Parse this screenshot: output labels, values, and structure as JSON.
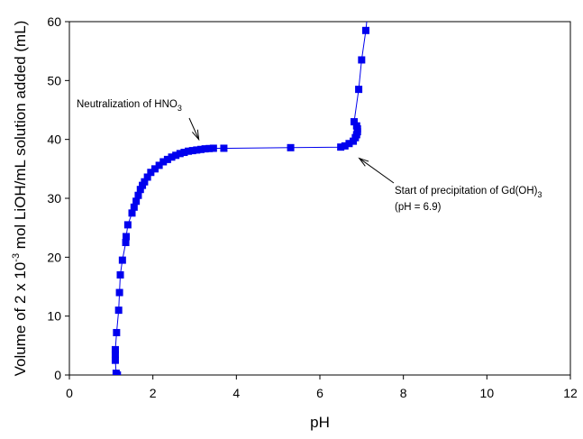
{
  "chart_data": {
    "type": "scatter",
    "title": "",
    "xlabel": "pH",
    "ylabel": {
      "prefix": "Volume of 2 x 10",
      "sup": "-3",
      "suffix": " mol LiOH/mL solution added (mL)"
    },
    "xlim": [
      0,
      12
    ],
    "ylim": [
      0,
      60
    ],
    "xticks": [
      "0",
      "2",
      "4",
      "6",
      "8",
      "10",
      "12"
    ],
    "yticks": [
      "0",
      "10",
      "20",
      "30",
      "40",
      "50",
      "60"
    ],
    "grid": false,
    "legend": "none",
    "marker": "square",
    "line": true,
    "series_color": "#0000ee",
    "series": [
      {
        "points": [
          [
            1.15,
            0
          ],
          [
            1.12,
            0.3
          ],
          [
            1.1,
            2.5
          ],
          [
            1.1,
            3.5
          ],
          [
            1.1,
            4.3
          ],
          [
            1.13,
            7.2
          ],
          [
            1.18,
            11
          ],
          [
            1.2,
            14
          ],
          [
            1.22,
            17
          ],
          [
            1.27,
            19.5
          ],
          [
            1.35,
            22.5
          ],
          [
            1.36,
            23.5
          ],
          [
            1.4,
            25.5
          ],
          [
            1.5,
            27.5
          ],
          [
            1.55,
            28.5
          ],
          [
            1.6,
            29.5
          ],
          [
            1.65,
            30.5
          ],
          [
            1.7,
            31.5
          ],
          [
            1.75,
            32.2
          ],
          [
            1.8,
            32.8
          ],
          [
            1.87,
            33.6
          ],
          [
            1.95,
            34.4
          ],
          [
            2.05,
            35
          ],
          [
            2.15,
            35.6
          ],
          [
            2.25,
            36.2
          ],
          [
            2.35,
            36.6
          ],
          [
            2.45,
            37
          ],
          [
            2.55,
            37.3
          ],
          [
            2.65,
            37.6
          ],
          [
            2.75,
            37.8
          ],
          [
            2.85,
            38
          ],
          [
            2.95,
            38.1
          ],
          [
            3.05,
            38.2
          ],
          [
            3.15,
            38.3
          ],
          [
            3.25,
            38.4
          ],
          [
            3.35,
            38.45
          ],
          [
            3.45,
            38.5
          ],
          [
            3.7,
            38.5
          ],
          [
            5.3,
            38.6
          ],
          [
            6.5,
            38.7
          ],
          [
            6.6,
            38.9
          ],
          [
            6.7,
            39.3
          ],
          [
            6.8,
            39.7
          ],
          [
            6.85,
            40.3
          ],
          [
            6.88,
            40.8
          ],
          [
            6.9,
            41.3
          ],
          [
            6.9,
            41.8
          ],
          [
            6.88,
            42.3
          ],
          [
            6.82,
            43
          ],
          [
            6.93,
            48.5
          ],
          [
            7.0,
            53.5
          ],
          [
            7.1,
            58.5
          ],
          [
            7.15,
            62
          ]
        ]
      }
    ],
    "annotations": [
      {
        "text": "Neutralization of HNO",
        "sub": "3",
        "sub_after": "",
        "line2": "",
        "arrow_to": [
          3.1,
          40
        ]
      },
      {
        "text": "Start of precipitation of Gd(OH)",
        "sub": "3",
        "sub_after": "",
        "line2": "(pH = 6.9)",
        "arrow_to": [
          6.9,
          36.8
        ]
      }
    ]
  }
}
